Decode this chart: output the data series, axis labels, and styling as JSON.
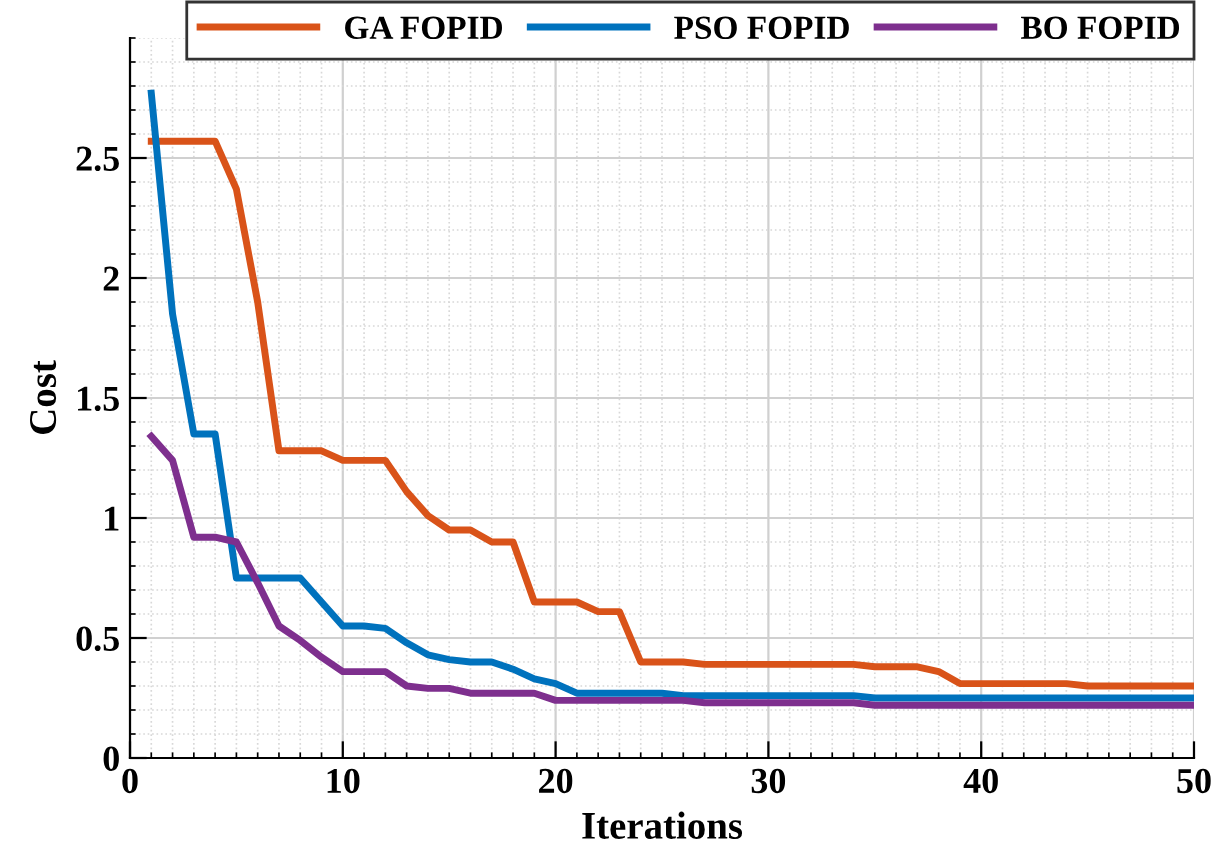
{
  "chart_data": {
    "type": "line",
    "xlabel": "Iterations",
    "ylabel": "Cost",
    "x": [
      1,
      2,
      3,
      4,
      5,
      6,
      7,
      8,
      9,
      10,
      11,
      12,
      13,
      14,
      15,
      16,
      17,
      18,
      19,
      20,
      21,
      22,
      23,
      24,
      25,
      26,
      27,
      28,
      29,
      30,
      31,
      32,
      33,
      34,
      35,
      36,
      37,
      38,
      39,
      40,
      41,
      42,
      43,
      44,
      45,
      46,
      47,
      48,
      49,
      50
    ],
    "series": [
      {
        "name": "GA FOPID",
        "color": "#d95319",
        "values": [
          2.57,
          2.57,
          2.57,
          2.57,
          2.37,
          1.9,
          1.28,
          1.28,
          1.28,
          1.24,
          1.24,
          1.24,
          1.11,
          1.01,
          0.95,
          0.95,
          0.9,
          0.9,
          0.65,
          0.65,
          0.65,
          0.61,
          0.61,
          0.4,
          0.4,
          0.4,
          0.39,
          0.39,
          0.39,
          0.39,
          0.39,
          0.39,
          0.39,
          0.39,
          0.38,
          0.38,
          0.38,
          0.36,
          0.31,
          0.31,
          0.31,
          0.31,
          0.31,
          0.31,
          0.3,
          0.3,
          0.3,
          0.3,
          0.3,
          0.3
        ]
      },
      {
        "name": "PSO FOPID",
        "color": "#0072bd",
        "values": [
          2.77,
          1.85,
          1.35,
          1.35,
          0.75,
          0.75,
          0.75,
          0.75,
          0.65,
          0.55,
          0.55,
          0.54,
          0.48,
          0.43,
          0.41,
          0.4,
          0.4,
          0.37,
          0.33,
          0.31,
          0.27,
          0.27,
          0.27,
          0.27,
          0.27,
          0.26,
          0.26,
          0.26,
          0.26,
          0.26,
          0.26,
          0.26,
          0.26,
          0.26,
          0.25,
          0.25,
          0.25,
          0.25,
          0.25,
          0.25,
          0.25,
          0.25,
          0.25,
          0.25,
          0.25,
          0.25,
          0.25,
          0.25,
          0.25,
          0.25
        ]
      },
      {
        "name": "BO FOPID",
        "color": "#7e2f8e",
        "values": [
          1.34,
          1.24,
          0.92,
          0.92,
          0.9,
          0.73,
          0.55,
          0.49,
          0.42,
          0.36,
          0.36,
          0.36,
          0.3,
          0.29,
          0.29,
          0.27,
          0.27,
          0.27,
          0.27,
          0.24,
          0.24,
          0.24,
          0.24,
          0.24,
          0.24,
          0.24,
          0.23,
          0.23,
          0.23,
          0.23,
          0.23,
          0.23,
          0.23,
          0.23,
          0.22,
          0.22,
          0.22,
          0.22,
          0.22,
          0.22,
          0.22,
          0.22,
          0.22,
          0.22,
          0.22,
          0.22,
          0.22,
          0.22,
          0.22,
          0.22
        ]
      }
    ],
    "xlim": [
      0,
      50
    ],
    "ylim": [
      0,
      3
    ],
    "xticks": [
      0,
      10,
      20,
      30,
      40,
      50
    ],
    "yticks": [
      0,
      0.5,
      1,
      1.5,
      2,
      2.5
    ],
    "grid": true,
    "legend": "top right",
    "marker": "none",
    "line_style": "solid"
  }
}
